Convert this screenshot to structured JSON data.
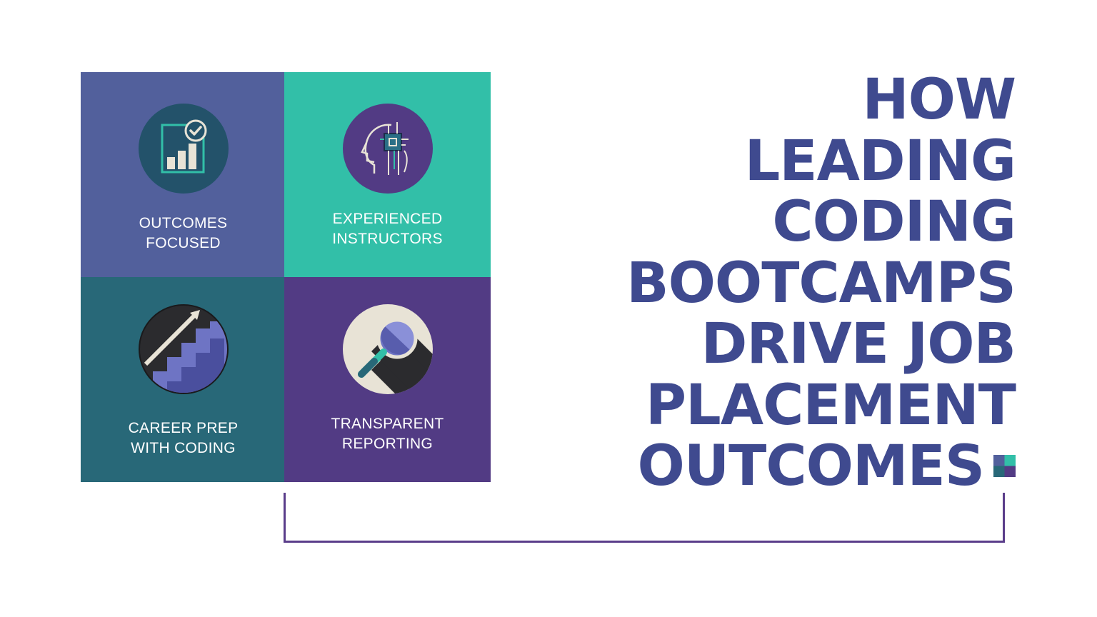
{
  "tiles": [
    {
      "id": "outcomes",
      "label_lines": [
        "OUTCOMES",
        "FOCUSED"
      ],
      "color": "#52609c",
      "icon": "chart-check-icon"
    },
    {
      "id": "instructors",
      "label_lines": [
        "EXPERIENCED",
        "INSTRUCTORS"
      ],
      "color": "#32bfa8",
      "icon": "head-chip-icon"
    },
    {
      "id": "career",
      "label_lines": [
        "CAREER PREP",
        "WITH CODING"
      ],
      "color": "#286878",
      "icon": "stairs-arrow-icon"
    },
    {
      "id": "reporting",
      "label_lines": [
        "TRANSPARENT",
        "REPORTING"
      ],
      "color": "#523b84",
      "icon": "magnifier-icon"
    }
  ],
  "headline": {
    "lines": [
      "HOW",
      "LEADING",
      "CODING",
      "BOOTCAMPS",
      "DRIVE JOB",
      "PLACEMENT",
      "OUTCOMES"
    ],
    "color": "#3f4a8f"
  },
  "logo_colors": [
    "#32bfa8",
    "#52609c",
    "#286878",
    "#523b84"
  ],
  "bracket_color": "#5a3d8a"
}
